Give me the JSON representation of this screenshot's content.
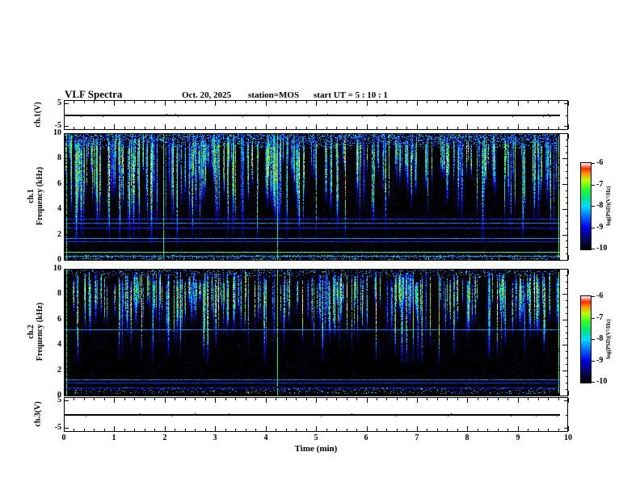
{
  "header": {
    "title": "VLF Spectra",
    "date": "Oct. 20, 2025",
    "station": "station=MOS",
    "start_ut": "start UT =  5 : 10 : 1"
  },
  "labels": {
    "time_axis": "Time (min)",
    "ch1v": "ch.1(V)",
    "ch3v": "ch.3(V)",
    "spec1": "ch.1\nFrequency (kHz)",
    "spec2": "ch.2\nFrequency (kHz)",
    "colorbar": "log(PSD)(V²/Hz)"
  },
  "colors": {
    "background": "#ffffff",
    "axis": "#000000",
    "spectrogram_background": "#000000",
    "colormap_stops": [
      [
        0.0,
        0,
        0,
        0
      ],
      [
        0.12,
        8,
        8,
        96
      ],
      [
        0.25,
        0,
        0,
        230
      ],
      [
        0.38,
        0,
        110,
        255
      ],
      [
        0.5,
        0,
        220,
        255
      ],
      [
        0.6,
        0,
        230,
        130
      ],
      [
        0.7,
        40,
        255,
        40
      ],
      [
        0.8,
        185,
        255,
        0
      ],
      [
        0.88,
        255,
        150,
        0
      ],
      [
        0.94,
        255,
        40,
        0
      ],
      [
        1.0,
        255,
        235,
        235
      ]
    ]
  },
  "chart_data": [
    {
      "type": "line",
      "id": "ch1_voltage",
      "ylabel": "ch.1(V)",
      "xlim": [
        0,
        10
      ],
      "yticks": [
        5,
        -5
      ],
      "value_volts": 0,
      "x_data_end_min": 9.82,
      "description": "flat 0 V trace with tiny noise blips"
    },
    {
      "type": "heatmap",
      "id": "ch1_spectrogram",
      "ylabel": "ch.1 Frequency (kHz)",
      "ylim": [
        0,
        10
      ],
      "yticks": [
        0,
        2,
        4,
        6,
        8,
        10
      ],
      "xlim": [
        0,
        10
      ],
      "x_data_end_min": 9.82,
      "colorbar": {
        "label": "log(PSD)(V²/Hz)",
        "ticks": [
          -6,
          -7,
          -8,
          -9,
          -10
        ],
        "range": [
          -10,
          -6
        ]
      },
      "content": {
        "top_band_khz": [
          8.9,
          10
        ],
        "top_band_density": 0.5,
        "streak_count": 270,
        "streak_top_khz": [
          9.1,
          9.95
        ],
        "streak_bottom_weights": [
          [
            0.5,
            [
              5.2,
              7.8
            ]
          ],
          [
            0.33,
            [
              2.9,
              5.2
            ]
          ],
          [
            0.17,
            [
              0.9,
              2.9
            ]
          ]
        ],
        "full_height_event_lines_min": [
          0.03,
          1.96,
          4.21,
          9.79
        ],
        "horizontal_lines": [
          {
            "khz": 3.2,
            "level": 0.3
          },
          {
            "khz": 2.9,
            "level": 0.38
          },
          {
            "khz": 2.5,
            "level": 0.28
          },
          {
            "khz": 1.65,
            "level": 0.4
          },
          {
            "khz": 1.45,
            "level": 0.3
          },
          {
            "khz": 0.55,
            "level": 0.68
          },
          {
            "khz": 0.25,
            "level": 0.4
          }
        ],
        "bottom_band_khz": [
          0,
          0.3
        ],
        "bottom_band_density": 0.25,
        "dust_density": 0.012
      }
    },
    {
      "type": "heatmap",
      "id": "ch2_spectrogram",
      "ylabel": "ch.2 Frequency (kHz)",
      "ylim": [
        0,
        10
      ],
      "yticks": [
        0,
        2,
        4,
        6,
        8,
        10
      ],
      "xlim": [
        0,
        10
      ],
      "x_data_end_min": 9.82,
      "colorbar": {
        "label": "log(PSD)(V²/Hz)",
        "ticks": [
          -6,
          -7,
          -8,
          -9,
          -10
        ],
        "range": [
          -10,
          -6
        ]
      },
      "content": {
        "top_band_khz": [
          9.4,
          10
        ],
        "top_band_density": 0.22,
        "streak_count": 240,
        "streak_top_khz": [
          8.8,
          9.85
        ],
        "streak_bottom_weights": [
          [
            0.55,
            [
              5.3,
              7.3
            ]
          ],
          [
            0.3,
            [
              3.8,
              5.3
            ]
          ],
          [
            0.15,
            [
              2.3,
              3.8
            ]
          ]
        ],
        "full_height_event_lines_min": [
          0.03,
          4.21,
          9.79
        ],
        "horizontal_lines": [
          {
            "khz": 5.2,
            "level": 0.4
          },
          {
            "khz": 1.2,
            "level": 0.38
          },
          {
            "khz": 1.0,
            "level": 0.3
          },
          {
            "khz": 0.6,
            "level": 0.26
          }
        ],
        "bottom_band_khz": [
          0.1,
          0.55
        ],
        "bottom_band_density": 0.12,
        "dust_density": 0.01
      }
    },
    {
      "type": "line",
      "id": "ch3_voltage",
      "ylabel": "ch.3(V)",
      "xlim": [
        0,
        10
      ],
      "yticks": [
        5,
        -5
      ],
      "xticks": [
        0,
        1,
        2,
        3,
        4,
        5,
        6,
        7,
        8,
        9,
        10
      ],
      "xlabel": "Time (min)",
      "value_volts": 0,
      "x_data_end_min": 9.82,
      "description": "flat 0 V trace with tiny noise blips"
    }
  ]
}
